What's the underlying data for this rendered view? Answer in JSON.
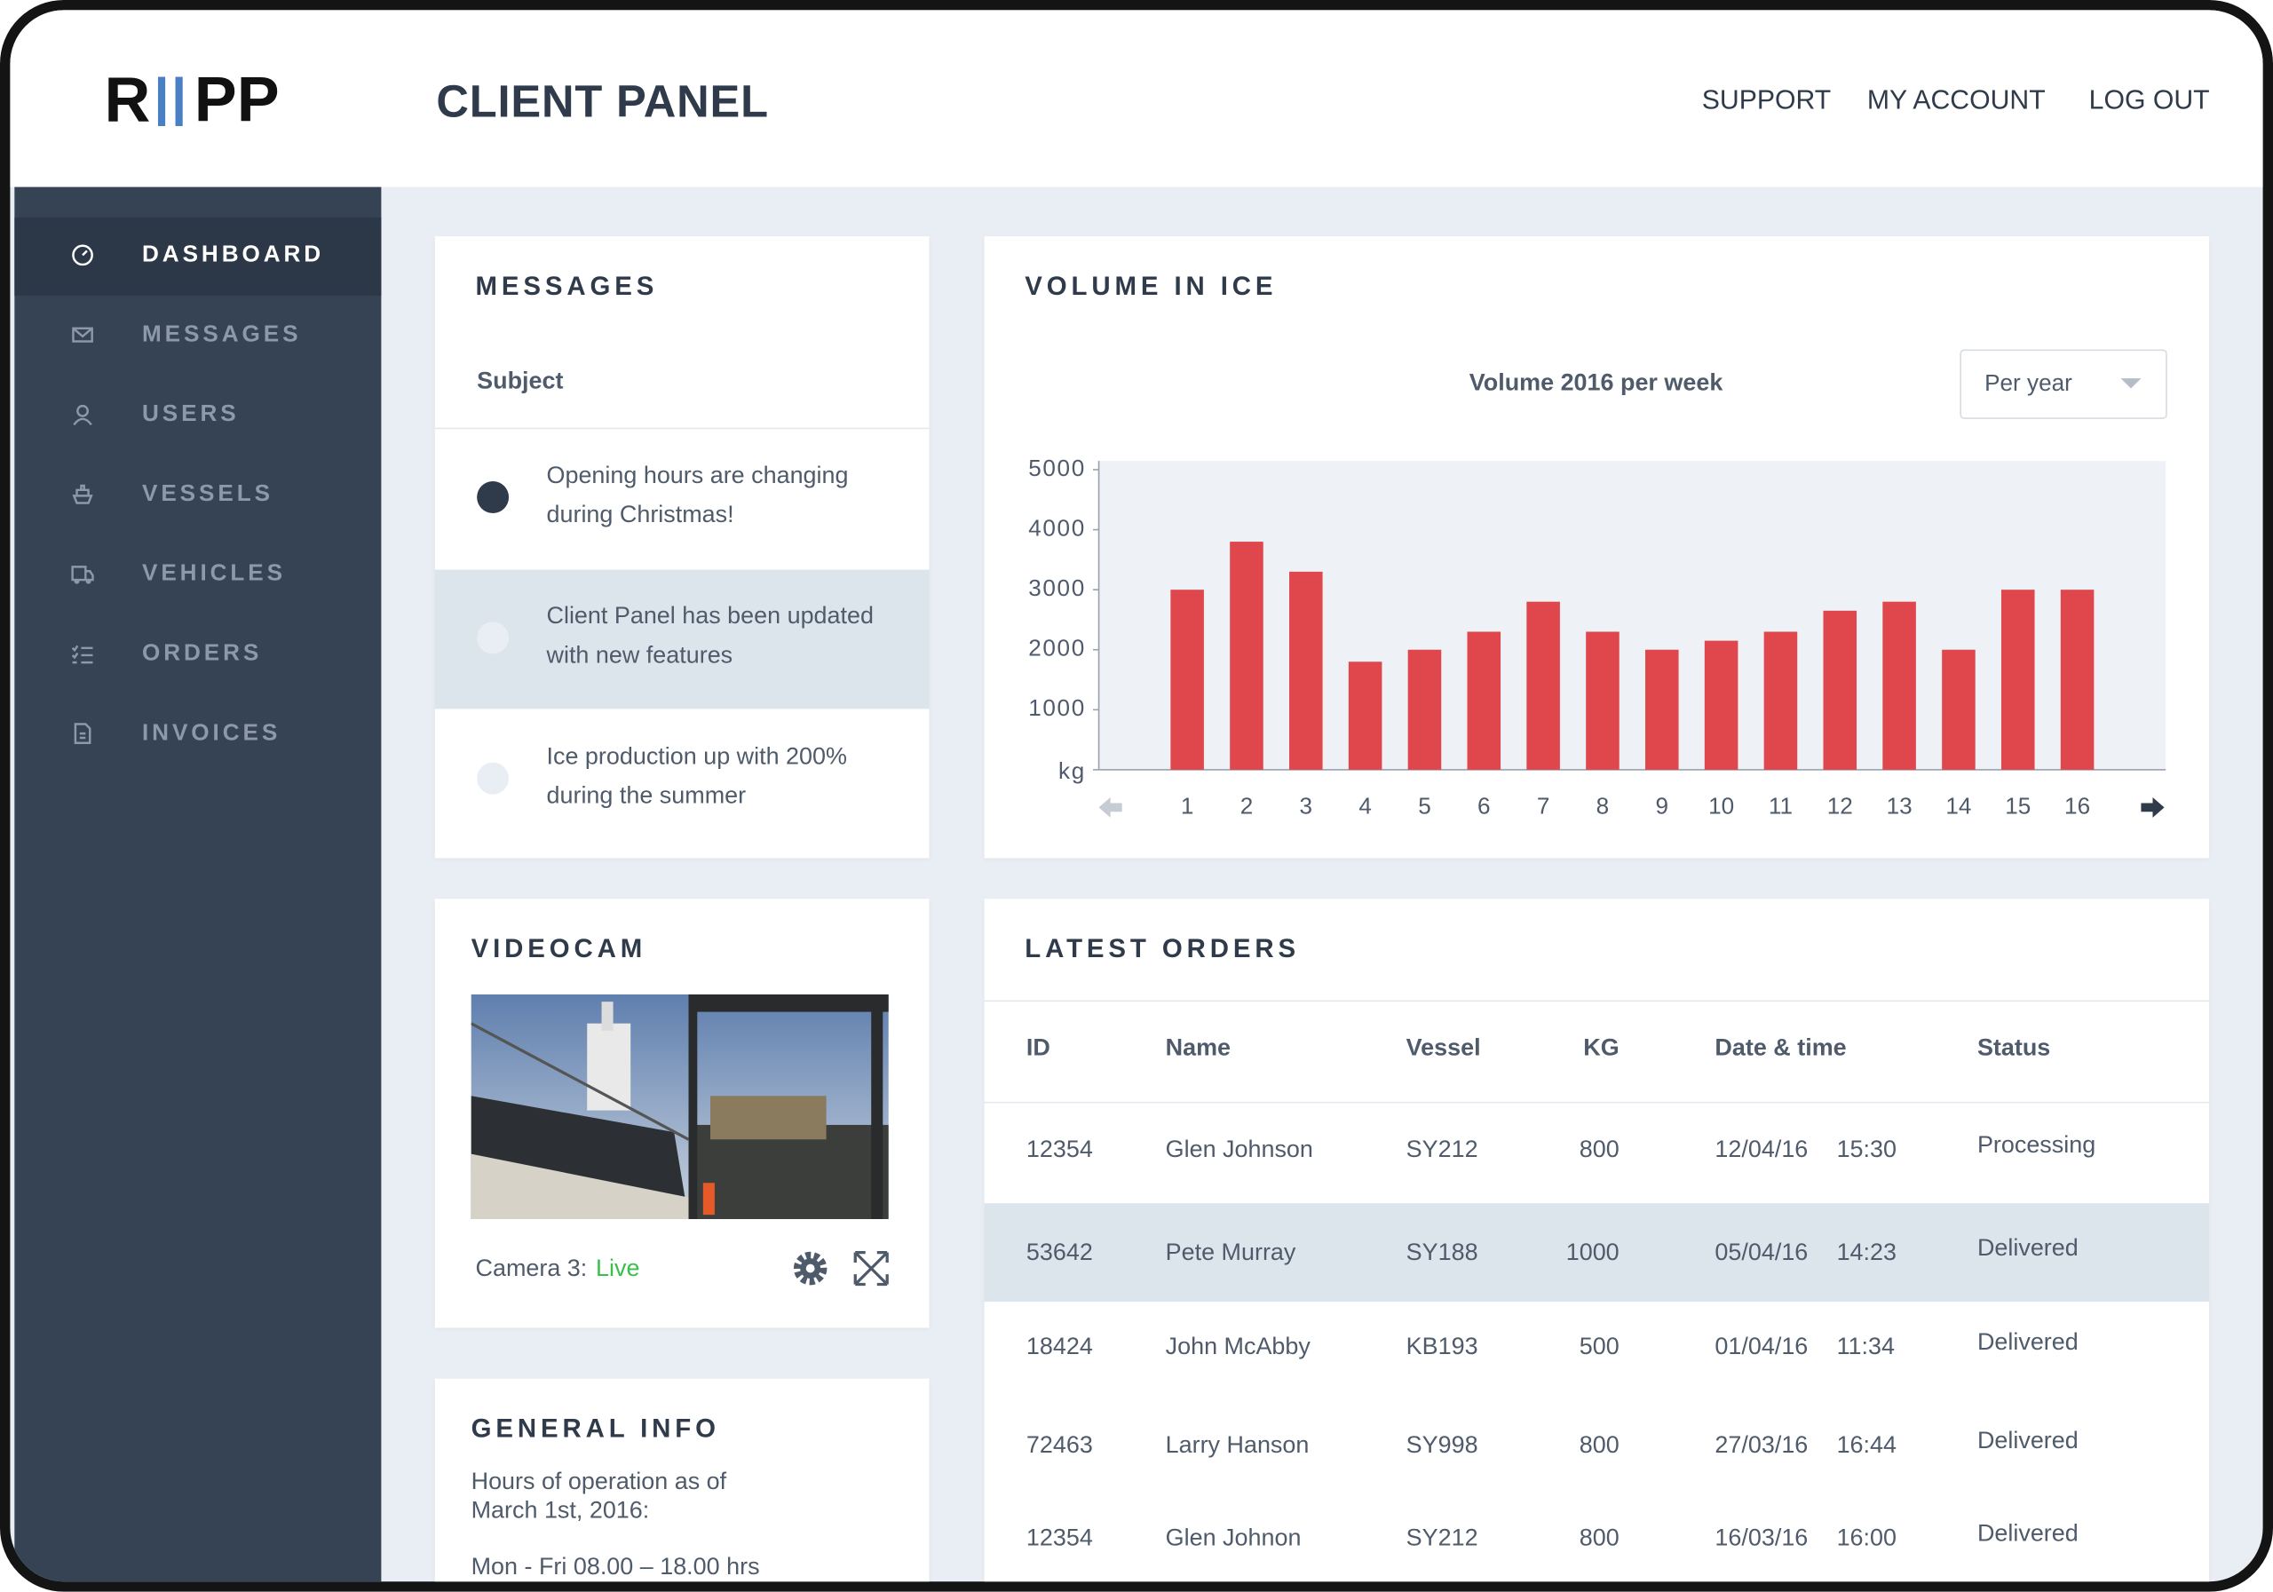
{
  "header": {
    "logo_left": "R",
    "logo_right": "PP",
    "title": "CLIENT PANEL",
    "nav": [
      "SUPPORT",
      "MY ACCOUNT",
      "LOG OUT"
    ]
  },
  "sidebar": [
    "DASHBOARD",
    "MESSAGES",
    "USERS",
    "VESSELS",
    "VEHICLES",
    "ORDERS",
    "INVOICES"
  ],
  "messages": {
    "title": "MESSAGES",
    "subject_label": "Subject",
    "items": [
      {
        "lines": [
          "Opening hours are changing",
          "during Christmas!"
        ]
      },
      {
        "lines": [
          "Client Panel has been updated",
          "with new features"
        ]
      },
      {
        "lines": [
          "Ice production up with 200%",
          "during the summer"
        ]
      }
    ]
  },
  "volume": {
    "title": "VOLUME IN ICE",
    "period": "Per year",
    "chart": {
      "type": "bar",
      "title": "Volume 2016 per week",
      "categories": [
        "1",
        "2",
        "3",
        "4",
        "5",
        "6",
        "7",
        "8",
        "9",
        "10",
        "11",
        "12",
        "13",
        "14",
        "15",
        "16"
      ],
      "values": [
        3000,
        3800,
        3300,
        1800,
        2000,
        2300,
        2800,
        2300,
        2000,
        2150,
        2300,
        2650,
        2800,
        2000,
        3000,
        3000
      ],
      "color": "#e0474c",
      "ylim": [
        0,
        5000
      ],
      "yticks": [
        {
          "value": 0,
          "label": "kg"
        },
        1000,
        2000,
        3000,
        4000,
        5000
      ]
    }
  },
  "videocam": {
    "title": "VIDEOCAM",
    "camera_label": "Camera 3:",
    "status": "Live"
  },
  "general_info": {
    "title": "GENERAL INFO",
    "lines": [
      "Hours of operation as of",
      "March 1st, 2016:",
      "Mon - Fri 08.00 – 18.00 hrs"
    ]
  },
  "orders": {
    "title": "LATEST ORDERS",
    "columns": [
      "ID",
      "Name",
      "Vessel",
      "KG",
      "Date & time",
      "Status"
    ],
    "rows": [
      [
        "12354",
        "Glen Johnson",
        "SY212",
        "800",
        "12/04/16",
        "15:30",
        "Processing"
      ],
      [
        "53642",
        "Pete Murray",
        "SY188",
        "1000",
        "05/04/16",
        "14:23",
        "Delivered"
      ],
      [
        "18424",
        "John McAbby",
        "KB193",
        "500",
        "01/04/16",
        "11:34",
        "Delivered"
      ],
      [
        "72463",
        "Larry Hanson",
        "SY998",
        "800",
        "27/03/16",
        "16:44",
        "Delivered"
      ],
      [
        "12354",
        "Glen Johnon",
        "SY212",
        "800",
        "16/03/16",
        "16:00",
        "Delivered"
      ]
    ]
  }
}
